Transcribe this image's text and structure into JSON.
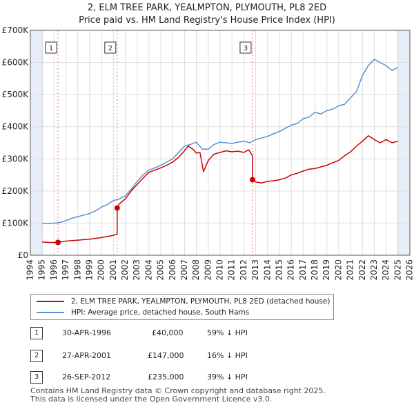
{
  "header": {
    "title_line1": "2, ELM TREE PARK, YEALMPTON, PLYMOUTH, PL8 2ED",
    "title_line2": "Price paid vs. HM Land Registry's House Price Index (HPI)"
  },
  "colors": {
    "property": "#cc0000",
    "hpi": "#5b8fd0",
    "marker_line": "#ee6677",
    "shade": "#e8eef7"
  },
  "chart_data": {
    "type": "line",
    "title": "Price paid vs. HM Land Registry's House Price Index (HPI)",
    "xlim": [
      1994,
      2026
    ],
    "ylim": [
      0,
      700000
    ],
    "x_ticks": [
      1994,
      1995,
      1996,
      1997,
      1998,
      1999,
      2000,
      2001,
      2002,
      2003,
      2004,
      2005,
      2006,
      2007,
      2008,
      2009,
      2010,
      2011,
      2012,
      2013,
      2014,
      2015,
      2016,
      2017,
      2018,
      2019,
      2020,
      2021,
      2022,
      2023,
      2024,
      2025,
      2026
    ],
    "y_ticks": [
      {
        "value": 0,
        "label": "£0"
      },
      {
        "value": 100000,
        "label": "£100K"
      },
      {
        "value": 200000,
        "label": "£200K"
      },
      {
        "value": 300000,
        "label": "£300K"
      },
      {
        "value": 400000,
        "label": "£400K"
      },
      {
        "value": 500000,
        "label": "£500K"
      },
      {
        "value": 600000,
        "label": "£600K"
      },
      {
        "value": 700000,
        "label": "£700K"
      }
    ],
    "shaded_ranges": [
      [
        1994,
        1995
      ],
      [
        2025.0,
        2026
      ]
    ],
    "series": [
      {
        "name": "2, ELM TREE PARK, YEALMPTON, PLYMOUTH, PL8 2ED (detached house)",
        "x": [
          1995.0,
          1995.5,
          1996.0,
          1996.33,
          1997.0,
          1998.0,
          1999.0,
          2000.0,
          2001.0,
          2001.32,
          2001.32,
          2001.5,
          2002.0,
          2002.5,
          2003.0,
          2003.5,
          2004.0,
          2004.5,
          2005.0,
          2005.5,
          2006.0,
          2006.5,
          2007.0,
          2007.3,
          2007.7,
          2008.0,
          2008.3,
          2008.6,
          2009.0,
          2009.5,
          2010.0,
          2010.5,
          2011.0,
          2011.5,
          2012.0,
          2012.4,
          2012.73,
          2012.73,
          2013.0,
          2013.5,
          2014.0,
          2014.5,
          2015.0,
          2015.5,
          2016.0,
          2016.5,
          2017.0,
          2017.5,
          2018.0,
          2018.5,
          2019.0,
          2019.5,
          2020.0,
          2020.5,
          2021.0,
          2021.5,
          2022.0,
          2022.5,
          2023.0,
          2023.5,
          2024.0,
          2024.5,
          2025.0
        ],
        "y": [
          41000,
          40000,
          39500,
          40000,
          44000,
          47000,
          50000,
          55000,
          62000,
          66000,
          147000,
          160000,
          175000,
          200000,
          220000,
          240000,
          258000,
          265000,
          272000,
          280000,
          290000,
          305000,
          325000,
          340000,
          330000,
          318000,
          320000,
          260000,
          295000,
          315000,
          320000,
          325000,
          322000,
          324000,
          320000,
          328000,
          310000,
          235000,
          228000,
          225000,
          230000,
          232000,
          235000,
          240000,
          250000,
          255000,
          262000,
          268000,
          270000,
          275000,
          280000,
          288000,
          295000,
          310000,
          322000,
          340000,
          355000,
          372000,
          360000,
          350000,
          360000,
          350000,
          355000
        ]
      },
      {
        "name": "HPI: Average price, detached house, South Hams",
        "x": [
          1995.0,
          1995.5,
          1996.0,
          1996.5,
          1997.0,
          1997.5,
          1998.0,
          1998.5,
          1999.0,
          1999.5,
          2000.0,
          2000.5,
          2001.0,
          2001.5,
          2002.0,
          2002.5,
          2003.0,
          2003.5,
          2004.0,
          2004.5,
          2005.0,
          2005.5,
          2006.0,
          2006.5,
          2007.0,
          2007.5,
          2008.0,
          2008.5,
          2009.0,
          2009.5,
          2010.0,
          2010.5,
          2011.0,
          2011.5,
          2012.0,
          2012.5,
          2013.0,
          2013.5,
          2014.0,
          2014.5,
          2015.0,
          2015.5,
          2016.0,
          2016.5,
          2017.0,
          2017.5,
          2018.0,
          2018.5,
          2019.0,
          2019.5,
          2020.0,
          2020.5,
          2021.0,
          2021.5,
          2022.0,
          2022.5,
          2023.0,
          2023.5,
          2024.0,
          2024.5,
          2025.0
        ],
        "y": [
          100000,
          98000,
          100000,
          102000,
          108000,
          115000,
          120000,
          125000,
          130000,
          138000,
          150000,
          158000,
          170000,
          175000,
          185000,
          205000,
          230000,
          250000,
          265000,
          272000,
          280000,
          290000,
          300000,
          320000,
          340000,
          345000,
          352000,
          330000,
          330000,
          345000,
          352000,
          350000,
          348000,
          352000,
          355000,
          350000,
          360000,
          365000,
          370000,
          378000,
          385000,
          395000,
          405000,
          410000,
          425000,
          430000,
          445000,
          440000,
          450000,
          455000,
          465000,
          470000,
          490000,
          510000,
          560000,
          590000,
          610000,
          600000,
          590000,
          575000,
          585000
        ]
      }
    ],
    "sales": [
      {
        "id": "1",
        "x": 1996.33,
        "y": 40000
      },
      {
        "id": "2",
        "x": 2001.32,
        "y": 147000
      },
      {
        "id": "3",
        "x": 2012.73,
        "y": 235000
      }
    ]
  },
  "legend": {
    "property_label": "2, ELM TREE PARK, YEALMPTON, PLYMOUTH, PL8 2ED (detached house)",
    "hpi_label": "HPI: Average price, detached house, South Hams"
  },
  "transactions": [
    {
      "num": "1",
      "date": "30-APR-1996",
      "price": "£40,000",
      "hpi": "59% ↓ HPI"
    },
    {
      "num": "2",
      "date": "27-APR-2001",
      "price": "£147,000",
      "hpi": "16% ↓ HPI"
    },
    {
      "num": "3",
      "date": "26-SEP-2012",
      "price": "£235,000",
      "hpi": "39% ↓ HPI"
    }
  ],
  "footer": {
    "line1": "Contains HM Land Registry data © Crown copyright and database right 2025.",
    "line2": "This data is licensed under the Open Government Licence v3.0."
  }
}
